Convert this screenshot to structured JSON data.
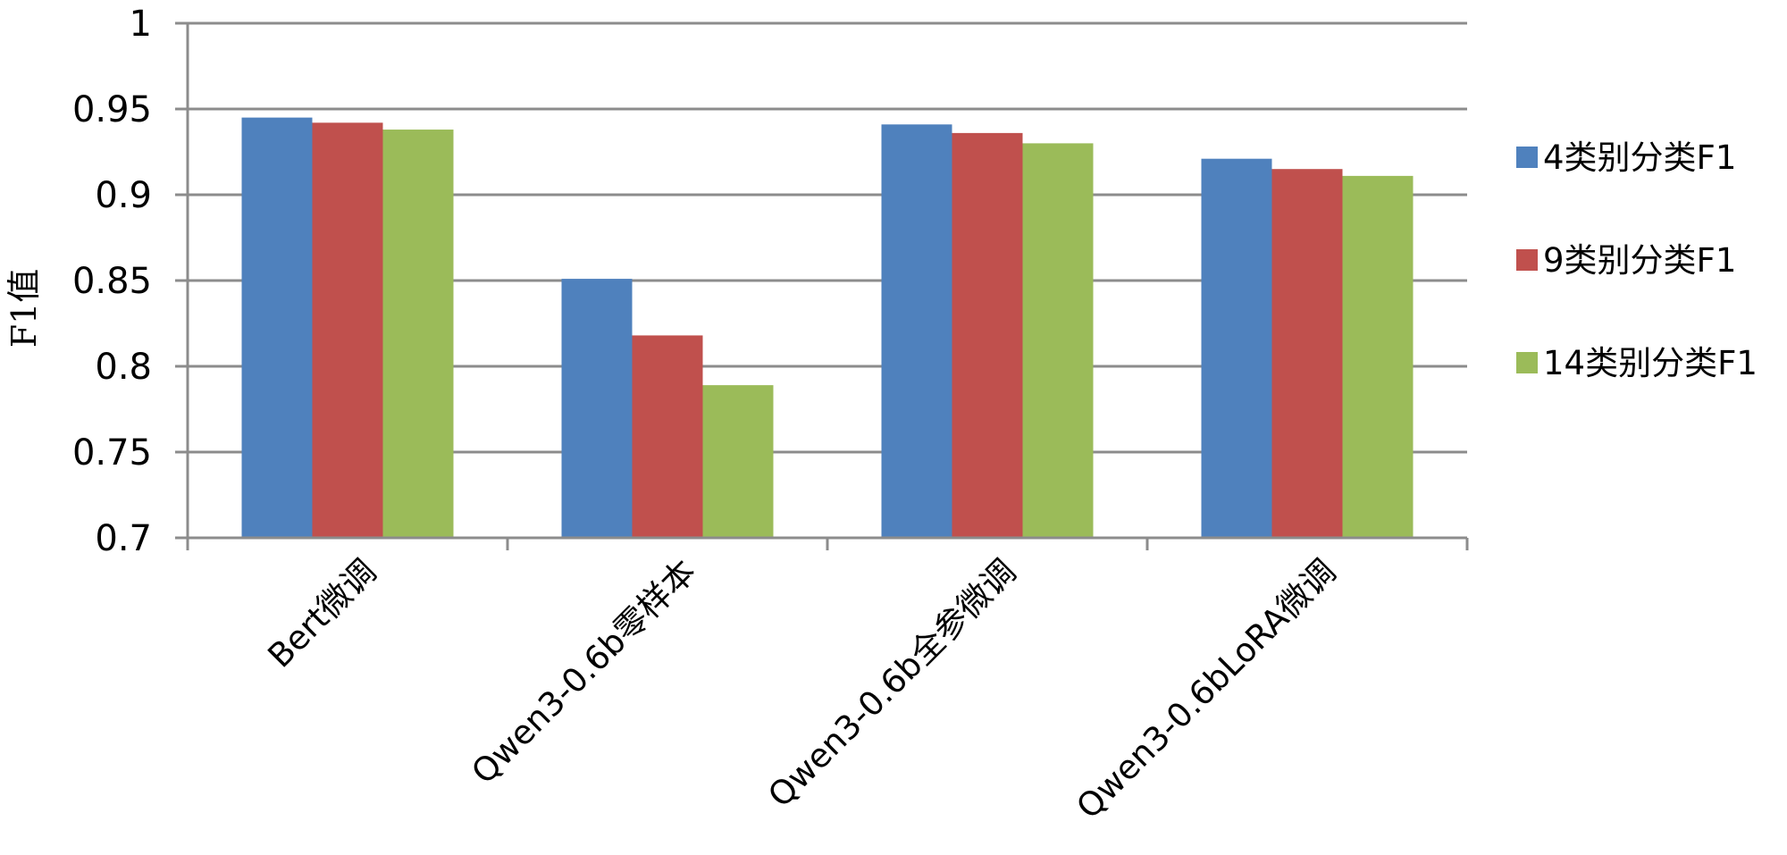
{
  "chart_data": {
    "type": "bar",
    "title": "",
    "xlabel": "",
    "ylabel": "F1值",
    "ylim": [
      0.7,
      1
    ],
    "y_ticks": [
      "0.7",
      "0.75",
      "0.8",
      "0.85",
      "0.9",
      "0.95",
      "1"
    ],
    "grid": true,
    "legend_position": "right",
    "categories": [
      "Bert微调",
      "Qwen3-0.6b零样本",
      "Qwen3-0.6b全参微调",
      "Qwen3-0.6bLoRA微调"
    ],
    "series": [
      {
        "name": "4类别分类F1",
        "color": "#4f81bd",
        "values": [
          0.945,
          0.851,
          0.941,
          0.921
        ]
      },
      {
        "name": "9类别分类F1",
        "color": "#c0504d",
        "values": [
          0.942,
          0.818,
          0.936,
          0.915
        ]
      },
      {
        "name": "14类别分类F1",
        "color": "#9bbb59",
        "values": [
          0.938,
          0.789,
          0.93,
          0.911
        ]
      }
    ]
  }
}
